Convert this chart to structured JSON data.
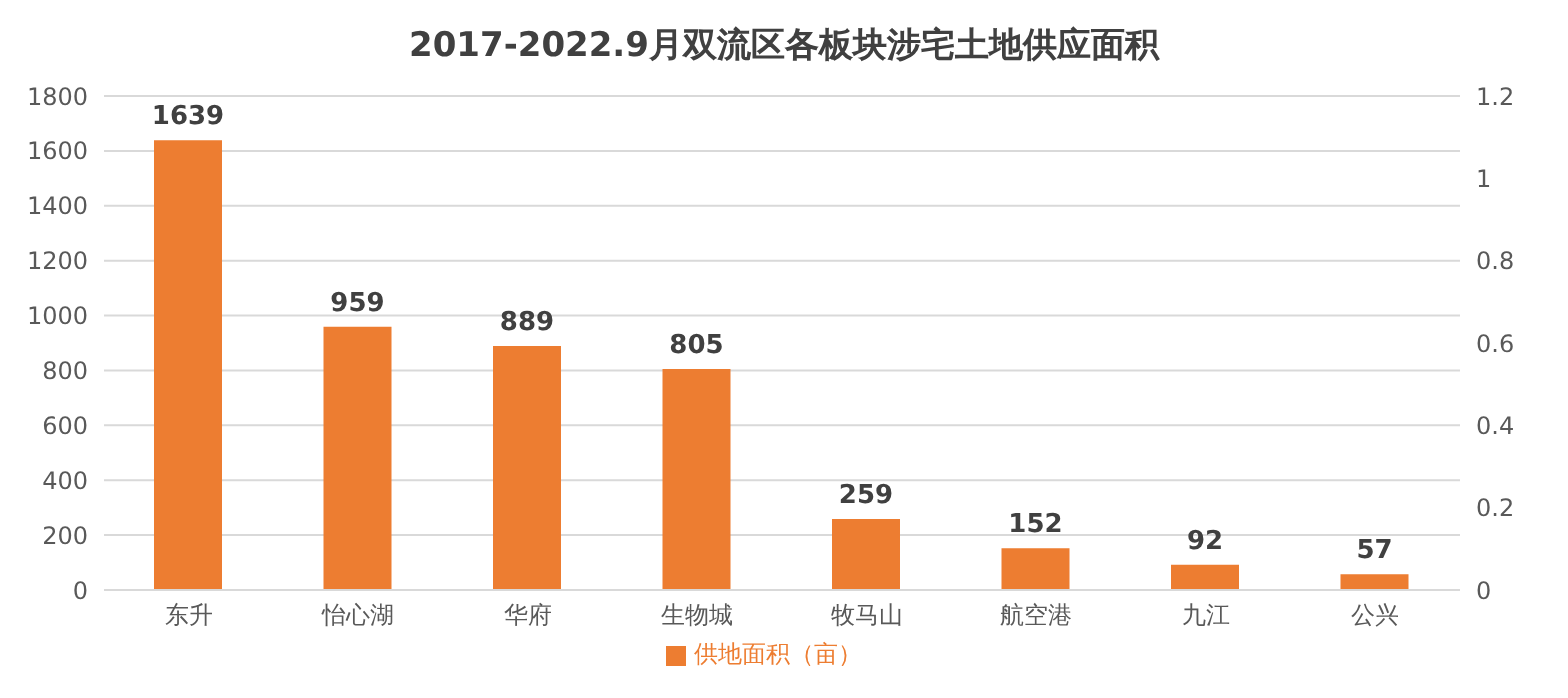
{
  "chart_data": {
    "type": "bar",
    "title": "2017-2022.9月双流区各板块涉宅土地供应面积",
    "categories": [
      "东升",
      "怡心湖",
      "华府",
      "生物城",
      "牧马山",
      "航空港",
      "九江",
      "公兴"
    ],
    "series": [
      {
        "name": "供地面积（亩）",
        "color": "#ed7d31",
        "values": [
          1639,
          959,
          889,
          805,
          259,
          152,
          92,
          57
        ]
      }
    ],
    "ylim": [
      0,
      1800
    ],
    "yticks": [
      0,
      200,
      400,
      600,
      800,
      1000,
      1200,
      1400,
      1600,
      1800
    ],
    "y2lim": [
      0,
      1.2
    ],
    "y2ticks": [
      0,
      0.2,
      0.4,
      0.6,
      0.8,
      1,
      1.2
    ],
    "grid": "y",
    "legend": "bottom",
    "data_labels": true
  }
}
